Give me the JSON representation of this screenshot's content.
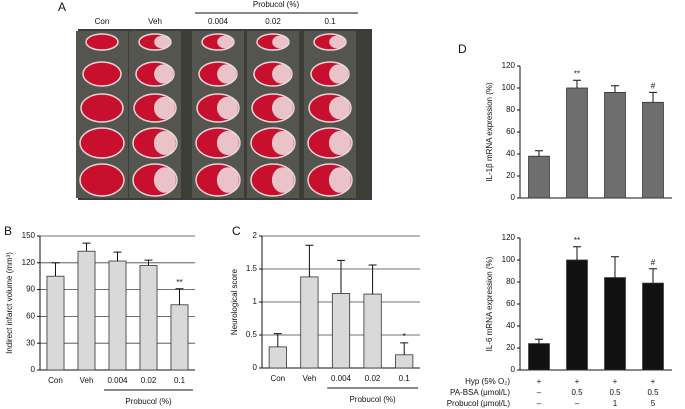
{
  "panel_a": {
    "label": "A",
    "groups": [
      "Con",
      "Veh",
      "0.004",
      "0.02",
      "0.1"
    ],
    "group_label": "Probucol (%)"
  },
  "chart_data": [
    {
      "type": "bar",
      "panel_label": "B",
      "y_label": "Indirect infarct volume (mm³)",
      "categories": [
        "Con",
        "Veh",
        "0.004",
        "0.02",
        "0.1"
      ],
      "group_label": "Probucol (%)",
      "values": [
        105,
        133,
        122,
        117,
        73
      ],
      "errors": [
        15,
        9,
        10,
        6,
        18
      ],
      "annotations": [
        null,
        null,
        null,
        null,
        "**"
      ],
      "color": "#d9d9d9",
      "ylim": [
        0,
        150
      ],
      "yticks": [
        0,
        30,
        60,
        90,
        120,
        150
      ],
      "grid": true
    },
    {
      "type": "bar",
      "panel_label": "C",
      "y_label": "Neurological score",
      "categories": [
        "Con",
        "Veh",
        "0.004",
        "0.02",
        "0.1"
      ],
      "group_label": "Probucol (%)",
      "values": [
        0.32,
        1.38,
        1.13,
        1.12,
        0.2
      ],
      "errors": [
        0.2,
        0.48,
        0.5,
        0.44,
        0.18
      ],
      "annotations": [
        null,
        null,
        null,
        null,
        "*"
      ],
      "color": "#d9d9d9",
      "ylim": [
        0,
        2
      ],
      "yticks": [
        0,
        0.5,
        1,
        1.5,
        2
      ],
      "grid": true
    },
    {
      "type": "bar",
      "panel_label": "D",
      "y_label": "IL-1β mRNA expression (%)",
      "categories": [
        null,
        null,
        null,
        null
      ],
      "values": [
        38,
        100,
        96,
        87
      ],
      "errors": [
        5,
        7,
        6,
        9
      ],
      "annotations": [
        null,
        "**",
        null,
        "#"
      ],
      "color": "#6e6e6e",
      "ylim": [
        0,
        120
      ],
      "yticks": [
        0,
        20,
        40,
        60,
        80,
        100,
        120
      ],
      "grid": false
    },
    {
      "type": "bar",
      "y_label": "IL-6 mRNA expression (%)",
      "categories": [
        null,
        null,
        null,
        null
      ],
      "values": [
        24,
        100,
        84,
        79
      ],
      "errors": [
        4,
        12,
        19,
        13
      ],
      "annotations": [
        null,
        "**",
        null,
        "#"
      ],
      "color": "#111111",
      "ylim": [
        0,
        120
      ],
      "yticks": [
        0,
        20,
        40,
        60,
        80,
        100,
        120
      ],
      "grid": false,
      "conditions": [
        {
          "label": "Hyp (5% O₂)",
          "cells": [
            "+",
            "+",
            "+",
            "+"
          ]
        },
        {
          "label": "PA-BSA (μmol/L)",
          "cells": [
            "–",
            "0.5",
            "0.5",
            "0.5"
          ]
        },
        {
          "label": "Probucol (μmol/L)",
          "cells": [
            "–",
            "–",
            "1",
            "5"
          ]
        }
      ]
    }
  ]
}
